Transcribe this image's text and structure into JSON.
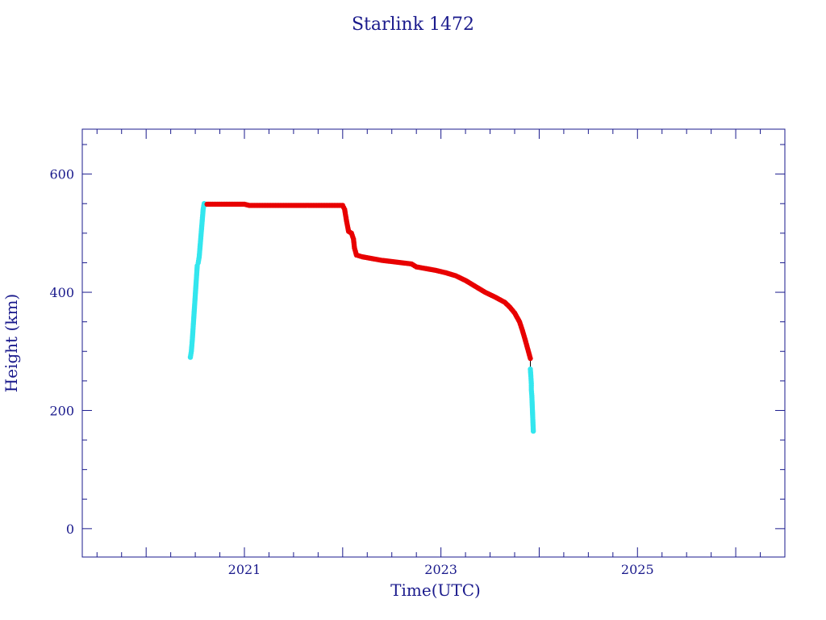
{
  "chart_data": {
    "type": "scatter",
    "title": "Starlink 1472",
    "xlabel": "Time(UTC)",
    "ylabel": "Height (km)",
    "xlim": [
      2019.35,
      2026.5
    ],
    "ylim": [
      -48,
      676
    ],
    "x_ticks": [
      2021,
      2023,
      2025
    ],
    "y_ticks": [
      0,
      200,
      400,
      600
    ],
    "grid": false,
    "colors": {
      "axis": "#1a1a8c",
      "primary": "#e80000",
      "secondary": "#33e6ee"
    },
    "series": [
      {
        "color": "#33e6ee",
        "points": [
          [
            2020.45,
            290
          ],
          [
            2020.46,
            300
          ],
          [
            2020.47,
            320
          ],
          [
            2020.48,
            345
          ],
          [
            2020.49,
            370
          ],
          [
            2020.5,
            395
          ],
          [
            2020.51,
            420
          ],
          [
            2020.52,
            445
          ],
          [
            2020.53,
            450
          ],
          [
            2020.54,
            460
          ],
          [
            2020.55,
            480
          ],
          [
            2020.56,
            500
          ],
          [
            2020.57,
            520
          ],
          [
            2020.58,
            540
          ],
          [
            2020.59,
            550
          ]
        ]
      },
      {
        "color": "#e80000",
        "points": [
          [
            2020.62,
            549
          ],
          [
            2020.8,
            549
          ],
          [
            2021.0,
            549
          ],
          [
            2021.05,
            547
          ],
          [
            2021.3,
            547
          ],
          [
            2021.6,
            547
          ],
          [
            2021.9,
            547
          ],
          [
            2022.0,
            547
          ],
          [
            2022.02,
            540
          ],
          [
            2022.04,
            520
          ],
          [
            2022.06,
            503
          ],
          [
            2022.09,
            500
          ],
          [
            2022.11,
            490
          ],
          [
            2022.12,
            475
          ],
          [
            2022.14,
            463
          ],
          [
            2022.2,
            460
          ],
          [
            2022.3,
            457
          ],
          [
            2022.4,
            454
          ],
          [
            2022.5,
            452
          ],
          [
            2022.6,
            450
          ],
          [
            2022.7,
            448
          ],
          [
            2022.75,
            443
          ],
          [
            2022.85,
            440
          ],
          [
            2022.95,
            437
          ],
          [
            2023.05,
            433
          ],
          [
            2023.15,
            428
          ],
          [
            2023.25,
            420
          ],
          [
            2023.35,
            410
          ],
          [
            2023.45,
            400
          ],
          [
            2023.55,
            392
          ],
          [
            2023.65,
            383
          ],
          [
            2023.7,
            375
          ],
          [
            2023.75,
            365
          ],
          [
            2023.8,
            350
          ],
          [
            2023.83,
            335
          ],
          [
            2023.86,
            318
          ],
          [
            2023.89,
            300
          ],
          [
            2023.91,
            288
          ]
        ]
      },
      {
        "color": "#33e6ee",
        "points": [
          [
            2023.91,
            270
          ],
          [
            2023.915,
            258
          ],
          [
            2023.92,
            245
          ],
          [
            2023.92,
            235
          ],
          [
            2023.925,
            225
          ],
          [
            2023.93,
            205
          ],
          [
            2023.935,
            185
          ],
          [
            2023.94,
            165
          ]
        ]
      }
    ]
  }
}
